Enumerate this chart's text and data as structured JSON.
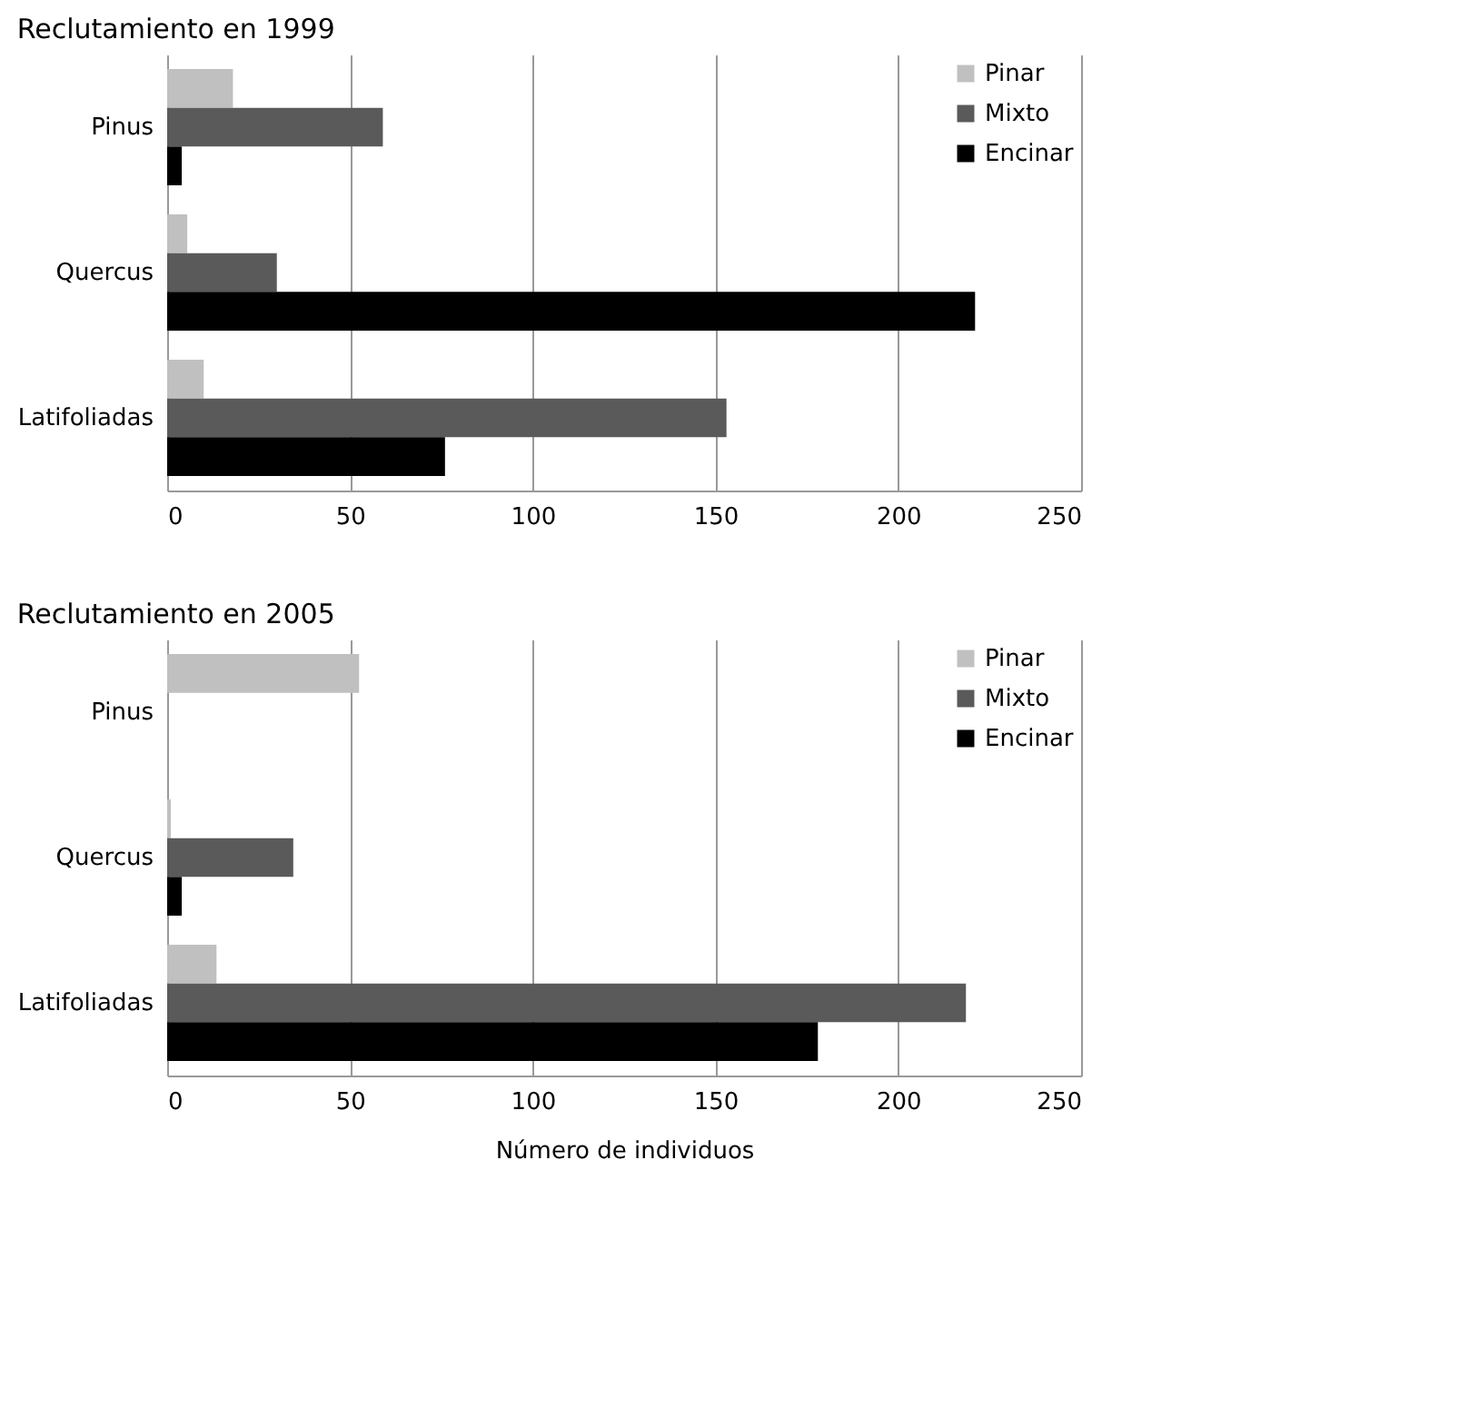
{
  "chart_data": [
    {
      "type": "bar",
      "orientation": "horizontal",
      "title": "Reclutamiento en 1999",
      "categories": [
        "Pinus",
        "Quercus",
        "Latifoliadas"
      ],
      "series": [
        {
          "name": "Pinar",
          "color": "#c0c0c0",
          "values": [
            18,
            5.5,
            10
          ]
        },
        {
          "name": "Mixto",
          "color": "#5a5a5a",
          "values": [
            59,
            30,
            153
          ]
        },
        {
          "name": "Encinar",
          "color": "#000000",
          "values": [
            4,
            221,
            76
          ]
        }
      ],
      "xlim": [
        0,
        250
      ],
      "xticks": [
        0,
        50,
        100,
        150,
        200,
        250
      ],
      "grid": "x",
      "legend": "top right"
    },
    {
      "type": "bar",
      "orientation": "horizontal",
      "title": "Reclutamiento en 2005",
      "xlabel": "Número de individuos",
      "categories": [
        "Pinus",
        "Quercus",
        "Latifoliadas"
      ],
      "series": [
        {
          "name": "Pinar",
          "color": "#c0c0c0",
          "values": [
            52.5,
            1,
            13.5
          ]
        },
        {
          "name": "Mixto",
          "color": "#5a5a5a",
          "values": [
            null,
            34.5,
            218.5
          ]
        },
        {
          "name": "Encinar",
          "color": "#000000",
          "values": [
            null,
            4,
            178
          ]
        }
      ],
      "xlim": [
        0,
        250
      ],
      "xticks": [
        0,
        50,
        100,
        150,
        200,
        250
      ],
      "grid": "x",
      "legend": "top right"
    }
  ]
}
